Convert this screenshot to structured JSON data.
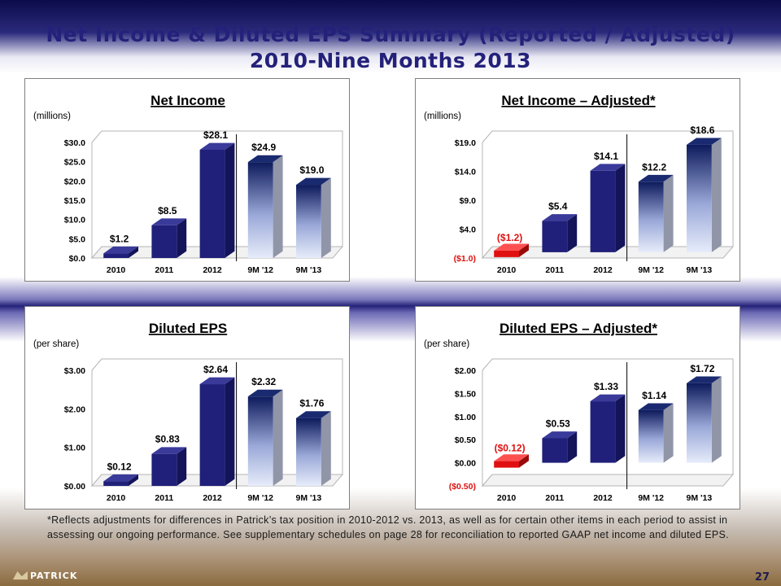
{
  "header": {
    "line1": "Net Income & Diluted EPS Summary (Reported / Adjusted)",
    "line2": "2010-Nine Months 2013"
  },
  "chart_data": [
    {
      "id": "net-income",
      "type": "bar",
      "title": "Net Income",
      "unit_label": "(millions)",
      "categories": [
        "2010",
        "2011",
        "2012",
        "9M '12",
        "9M '13"
      ],
      "values": [
        1.2,
        8.5,
        28.1,
        24.9,
        19.0
      ],
      "data_labels": [
        "$1.2",
        "$8.5",
        "$28.1",
        "$24.9",
        "$19.0"
      ],
      "yticks": [
        0,
        5,
        10,
        15,
        20,
        25,
        30
      ],
      "ytick_labels": [
        "$0.0",
        "$5.0",
        "$10.0",
        "$15.0",
        "$20.0",
        "$25.0",
        "$30.0"
      ],
      "ylim": [
        0,
        30
      ],
      "bar_styles": [
        "dark",
        "dark",
        "dark",
        "gradient",
        "gradient"
      ]
    },
    {
      "id": "net-income-adjusted",
      "type": "bar",
      "title": "Net Income – Adjusted*",
      "unit_label": "(millions)",
      "categories": [
        "2010",
        "2011",
        "2012",
        "9M '12",
        "9M '13"
      ],
      "values": [
        -1.2,
        5.4,
        14.1,
        12.2,
        18.6
      ],
      "data_labels": [
        "($1.2)",
        "$5.4",
        "$14.1",
        "$12.2",
        "$18.6"
      ],
      "yticks": [
        -1,
        4,
        9,
        14,
        19
      ],
      "ytick_labels": [
        "($1.0)",
        "$4.0",
        "$9.0",
        "$14.0",
        "$19.0"
      ],
      "ylim": [
        -1,
        19
      ],
      "bar_styles": [
        "red",
        "dark",
        "dark",
        "gradient",
        "gradient"
      ]
    },
    {
      "id": "diluted-eps",
      "type": "bar",
      "title": "Diluted EPS",
      "unit_label": "(per share)",
      "categories": [
        "2010",
        "2011",
        "2012",
        "9M '12",
        "9M '13"
      ],
      "values": [
        0.12,
        0.83,
        2.64,
        2.32,
        1.76
      ],
      "data_labels": [
        "$0.12",
        "$0.83",
        "$2.64",
        "$2.32",
        "$1.76"
      ],
      "yticks": [
        0,
        1,
        2,
        3
      ],
      "ytick_labels": [
        "$0.00",
        "$1.00",
        "$2.00",
        "$3.00"
      ],
      "ylim": [
        0,
        3
      ],
      "bar_styles": [
        "dark",
        "dark",
        "dark",
        "gradient",
        "gradient"
      ]
    },
    {
      "id": "diluted-eps-adjusted",
      "type": "bar",
      "title": "Diluted EPS – Adjusted*",
      "unit_label": "(per share)",
      "categories": [
        "2010",
        "2011",
        "2012",
        "9M '12",
        "9M '13"
      ],
      "values": [
        -0.12,
        0.53,
        1.33,
        1.14,
        1.72
      ],
      "data_labels": [
        "($0.12)",
        "$0.53",
        "$1.33",
        "$1.14",
        "$1.72"
      ],
      "yticks": [
        -0.5,
        0,
        0.5,
        1,
        1.5,
        2
      ],
      "ytick_labels": [
        "($0.50)",
        "$0.00",
        "$0.50",
        "$1.00",
        "$1.50",
        "$2.00"
      ],
      "ylim": [
        -0.5,
        2
      ],
      "bar_styles": [
        "red",
        "dark",
        "dark",
        "gradient",
        "gradient"
      ]
    }
  ],
  "footnote": "*Reflects adjustments for differences in Patrick’s tax position in 2010-2012 vs. 2013, as well as for certain other items in each period to assist in assessing our ongoing performance.  See supplementary schedules on page 28 for reconciliation to reported GAAP net income and diluted EPS.",
  "footer": {
    "logo_text": "PATRICK",
    "page_number": "27"
  },
  "colors": {
    "title": "#24217a",
    "bar_dark": "#20207a",
    "bar_negative": "#e01010",
    "label_negative": "#e01010",
    "gradient_top": "#0d1a5c",
    "gradient_bottom": "#e6ecfa"
  }
}
